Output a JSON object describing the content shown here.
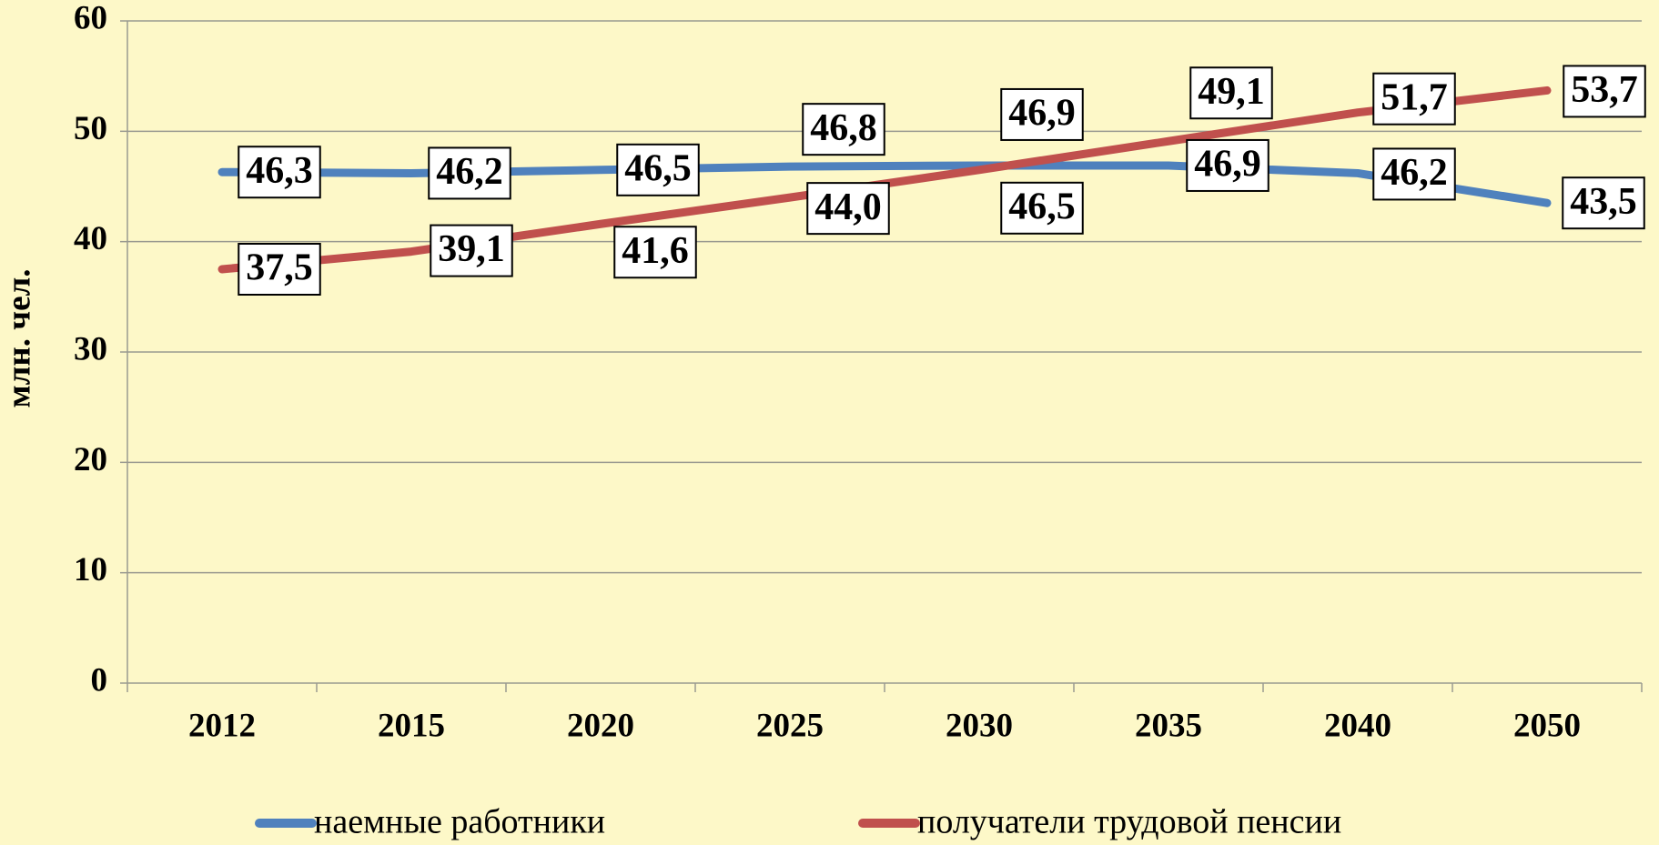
{
  "chart_data": {
    "type": "line",
    "y_label": "млн. чел.",
    "categories": [
      "2012",
      "2015",
      "2020",
      "2025",
      "2030",
      "2035",
      "2040",
      "2050"
    ],
    "series": [
      {
        "name": "наемные работники",
        "color": "#4f81bd",
        "values": [
          46.3,
          46.2,
          46.5,
          46.8,
          46.9,
          46.9,
          46.2,
          43.5
        ],
        "value_labels": [
          "46,3",
          "46,2",
          "46,5",
          "46,8",
          "46,9",
          "46,9",
          "46,2",
          "43,5"
        ]
      },
      {
        "name": "получатели трудовой пенсии",
        "color": "#c0504d",
        "values": [
          37.5,
          39.1,
          41.6,
          44.0,
          46.5,
          49.1,
          51.7,
          53.7
        ],
        "value_labels": [
          "37,5",
          "39,1",
          "41,6",
          "44,0",
          "46,5",
          "49,1",
          "51,7",
          "53,7"
        ]
      }
    ],
    "ylim": [
      0,
      60
    ],
    "yticks": [
      0,
      10,
      20,
      30,
      40,
      50,
      60
    ],
    "grid": true,
    "legend": "bottom"
  }
}
